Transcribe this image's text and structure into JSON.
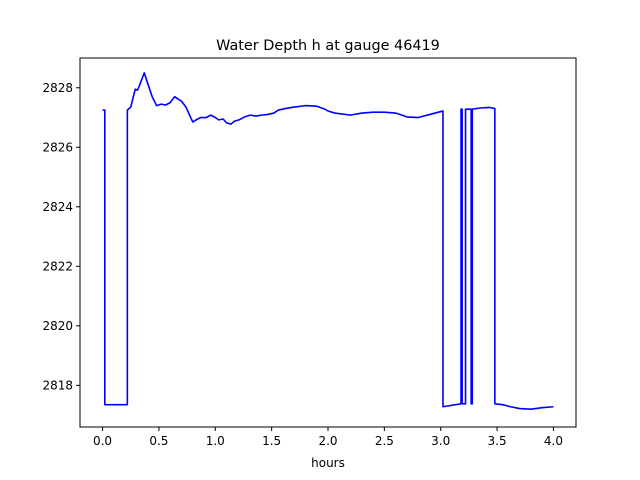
{
  "chart_data": {
    "type": "line",
    "title": "Water Depth h at gauge 46419",
    "xlabel": "hours",
    "ylabel": "",
    "xlim": [
      -0.2,
      4.2
    ],
    "ylim": [
      2816.6,
      2829.0
    ],
    "xticks": [
      0.0,
      0.5,
      1.0,
      1.5,
      2.0,
      2.5,
      3.0,
      3.5,
      4.0
    ],
    "xtick_labels": [
      "0.0",
      "0.5",
      "1.0",
      "1.5",
      "2.0",
      "2.5",
      "3.0",
      "3.5",
      "4.0"
    ],
    "yticks": [
      2818,
      2820,
      2822,
      2824,
      2826,
      2828
    ],
    "ytick_labels": [
      "2818",
      "2820",
      "2822",
      "2824",
      "2826",
      "2828"
    ],
    "grid": false,
    "series": [
      {
        "color": "#0000ff",
        "x": [
          0.0,
          0.02,
          0.02,
          0.22,
          0.22,
          0.25,
          0.29,
          0.31,
          0.33,
          0.37,
          0.4,
          0.44,
          0.48,
          0.52,
          0.56,
          0.6,
          0.64,
          0.67,
          0.7,
          0.74,
          0.77,
          0.8,
          0.83,
          0.87,
          0.92,
          0.96,
          1.0,
          1.03,
          1.07,
          1.1,
          1.14,
          1.17,
          1.21,
          1.26,
          1.31,
          1.36,
          1.41,
          1.46,
          1.52,
          1.56,
          1.62,
          1.7,
          1.8,
          1.9,
          1.96,
          2.0,
          2.06,
          2.12,
          2.2,
          2.3,
          2.4,
          2.5,
          2.6,
          2.7,
          2.8,
          2.9,
          3.0,
          3.02,
          3.02,
          3.18,
          3.18,
          3.19,
          3.19,
          3.22,
          3.22,
          3.27,
          3.27,
          3.28,
          3.28,
          3.35,
          3.43,
          3.48,
          3.48,
          3.55,
          3.62,
          3.7,
          3.8,
          3.9,
          4.0
        ],
        "y": [
          2827.25,
          2827.25,
          2817.35,
          2817.35,
          2827.25,
          2827.35,
          2827.95,
          2827.92,
          2828.1,
          2828.5,
          2828.15,
          2827.7,
          2827.4,
          2827.45,
          2827.42,
          2827.5,
          2827.7,
          2827.62,
          2827.55,
          2827.35,
          2827.1,
          2826.85,
          2826.92,
          2827.0,
          2827.0,
          2827.08,
          2827.0,
          2826.92,
          2826.95,
          2826.82,
          2826.78,
          2826.88,
          2826.92,
          2827.02,
          2827.08,
          2827.05,
          2827.08,
          2827.1,
          2827.15,
          2827.25,
          2827.3,
          2827.35,
          2827.4,
          2827.38,
          2827.3,
          2827.22,
          2827.15,
          2827.12,
          2827.08,
          2827.15,
          2827.18,
          2827.18,
          2827.15,
          2827.02,
          2827.0,
          2827.1,
          2827.2,
          2827.22,
          2817.28,
          2817.38,
          2827.28,
          2827.28,
          2817.38,
          2817.38,
          2827.28,
          2827.28,
          2817.38,
          2817.38,
          2827.28,
          2827.32,
          2827.34,
          2827.3,
          2817.38,
          2817.35,
          2817.28,
          2817.22,
          2817.2,
          2817.25,
          2817.28
        ]
      }
    ]
  }
}
